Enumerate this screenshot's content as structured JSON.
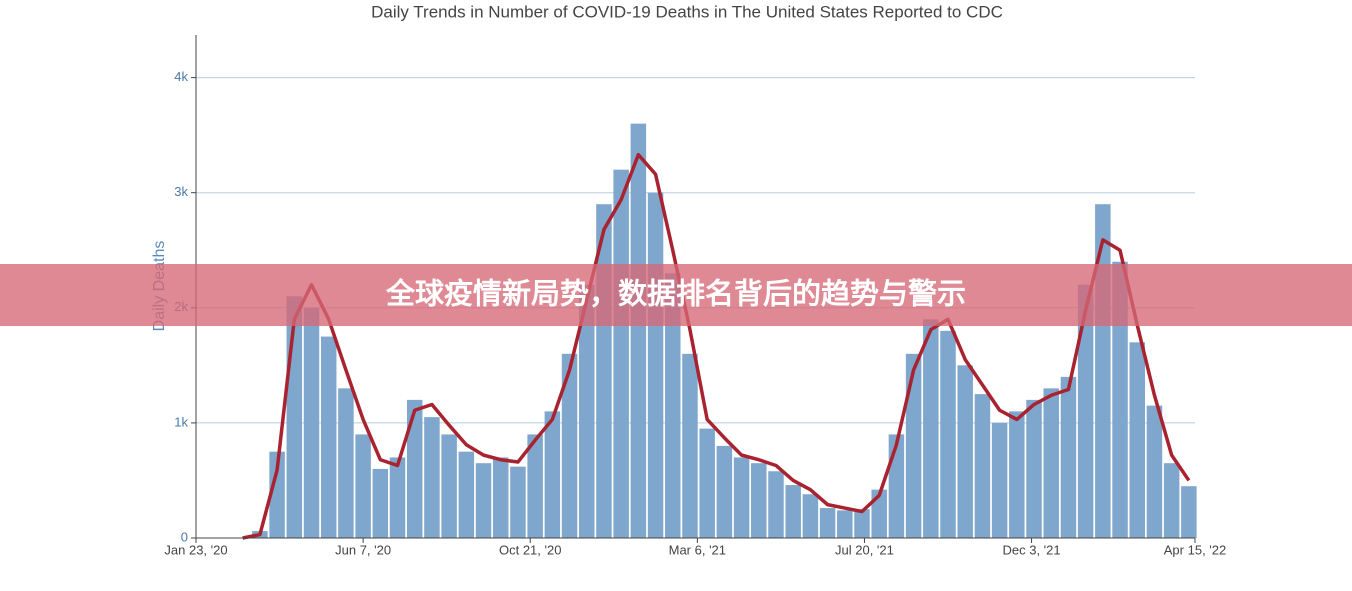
{
  "chart_data": {
    "type": "bar",
    "title": "Daily Trends in Number of COVID-19 Deaths in The United States Reported to CDC",
    "y_label": "Daily Deaths",
    "x": [
      "2020-03-01",
      "2020-03-15",
      "2020-03-29",
      "2020-04-12",
      "2020-04-26",
      "2020-05-10",
      "2020-05-24",
      "2020-06-07",
      "2020-06-21",
      "2020-07-05",
      "2020-07-19",
      "2020-08-02",
      "2020-08-16",
      "2020-08-30",
      "2020-09-13",
      "2020-09-27",
      "2020-10-11",
      "2020-10-25",
      "2020-11-08",
      "2020-11-22",
      "2020-12-06",
      "2020-12-20",
      "2021-01-03",
      "2021-01-17",
      "2021-01-31",
      "2021-02-14",
      "2021-02-28",
      "2021-03-14",
      "2021-03-28",
      "2021-04-11",
      "2021-04-25",
      "2021-05-09",
      "2021-05-23",
      "2021-06-06",
      "2021-06-20",
      "2021-07-04",
      "2021-07-18",
      "2021-08-01",
      "2021-08-15",
      "2021-08-29",
      "2021-09-12",
      "2021-09-26",
      "2021-10-10",
      "2021-10-24",
      "2021-11-07",
      "2021-11-21",
      "2021-12-05",
      "2021-12-19",
      "2022-01-02",
      "2022-01-16",
      "2022-01-30",
      "2022-02-13",
      "2022-02-27",
      "2022-03-13",
      "2022-03-27",
      "2022-04-10"
    ],
    "series": [
      {
        "type": "bar",
        "color": "#7fa6cc",
        "values": [
          0,
          60,
          750,
          2100,
          2000,
          1750,
          1300,
          900,
          600,
          700,
          1200,
          1050,
          900,
          750,
          650,
          700,
          620,
          900,
          1100,
          1600,
          2200,
          2900,
          3200,
          3600,
          3000,
          2300,
          1600,
          950,
          800,
          700,
          650,
          580,
          460,
          380,
          260,
          240,
          250,
          420,
          900,
          1600,
          1900,
          1800,
          1500,
          1250,
          1000,
          1100,
          1200,
          1300,
          1400,
          2200,
          2900,
          2400,
          1700,
          1150,
          650,
          450
        ]
      },
      {
        "type": "line",
        "color": "#a8232f",
        "values": [
          0,
          30,
          590,
          1900,
          2200,
          1900,
          1460,
          1030,
          680,
          630,
          1110,
          1160,
          980,
          810,
          720,
          680,
          660,
          850,
          1030,
          1460,
          2070,
          2680,
          2940,
          3330,
          3160,
          2500,
          1810,
          1030,
          870,
          720,
          680,
          630,
          500,
          420,
          290,
          260,
          230,
          370,
          810,
          1460,
          1810,
          1900,
          1550,
          1330,
          1110,
          1030,
          1160,
          1240,
          1290,
          1980,
          2590,
          2500,
          1850,
          1240,
          720,
          500
        ]
      }
    ],
    "xlim": [
      "2020-01-23",
      "2022-04-15"
    ],
    "xticks": [
      {
        "value": "2020-01-23",
        "label": "Jan 23, '20"
      },
      {
        "value": "2020-06-07",
        "label": "Jun 7, '20"
      },
      {
        "value": "2020-10-21",
        "label": "Oct 21, '20"
      },
      {
        "value": "2021-03-06",
        "label": "Mar 6, '21"
      },
      {
        "value": "2021-07-20",
        "label": "Jul 20, '21"
      },
      {
        "value": "2021-12-03",
        "label": "Dec 3, '21"
      },
      {
        "value": "2022-04-15",
        "label": "Apr 15, '22"
      }
    ],
    "ylim": [
      0,
      4370
    ],
    "yticks": [
      0,
      {
        "value": 1000,
        "label": "1k"
      },
      {
        "value": 2000,
        "label": "2k"
      },
      {
        "value": 3000,
        "label": "3k"
      },
      {
        "value": 4000,
        "label": "4k"
      }
    ],
    "grid": true
  },
  "banner": {
    "text": "全球疫情新局势，数据排名背后的趋势与警示"
  }
}
